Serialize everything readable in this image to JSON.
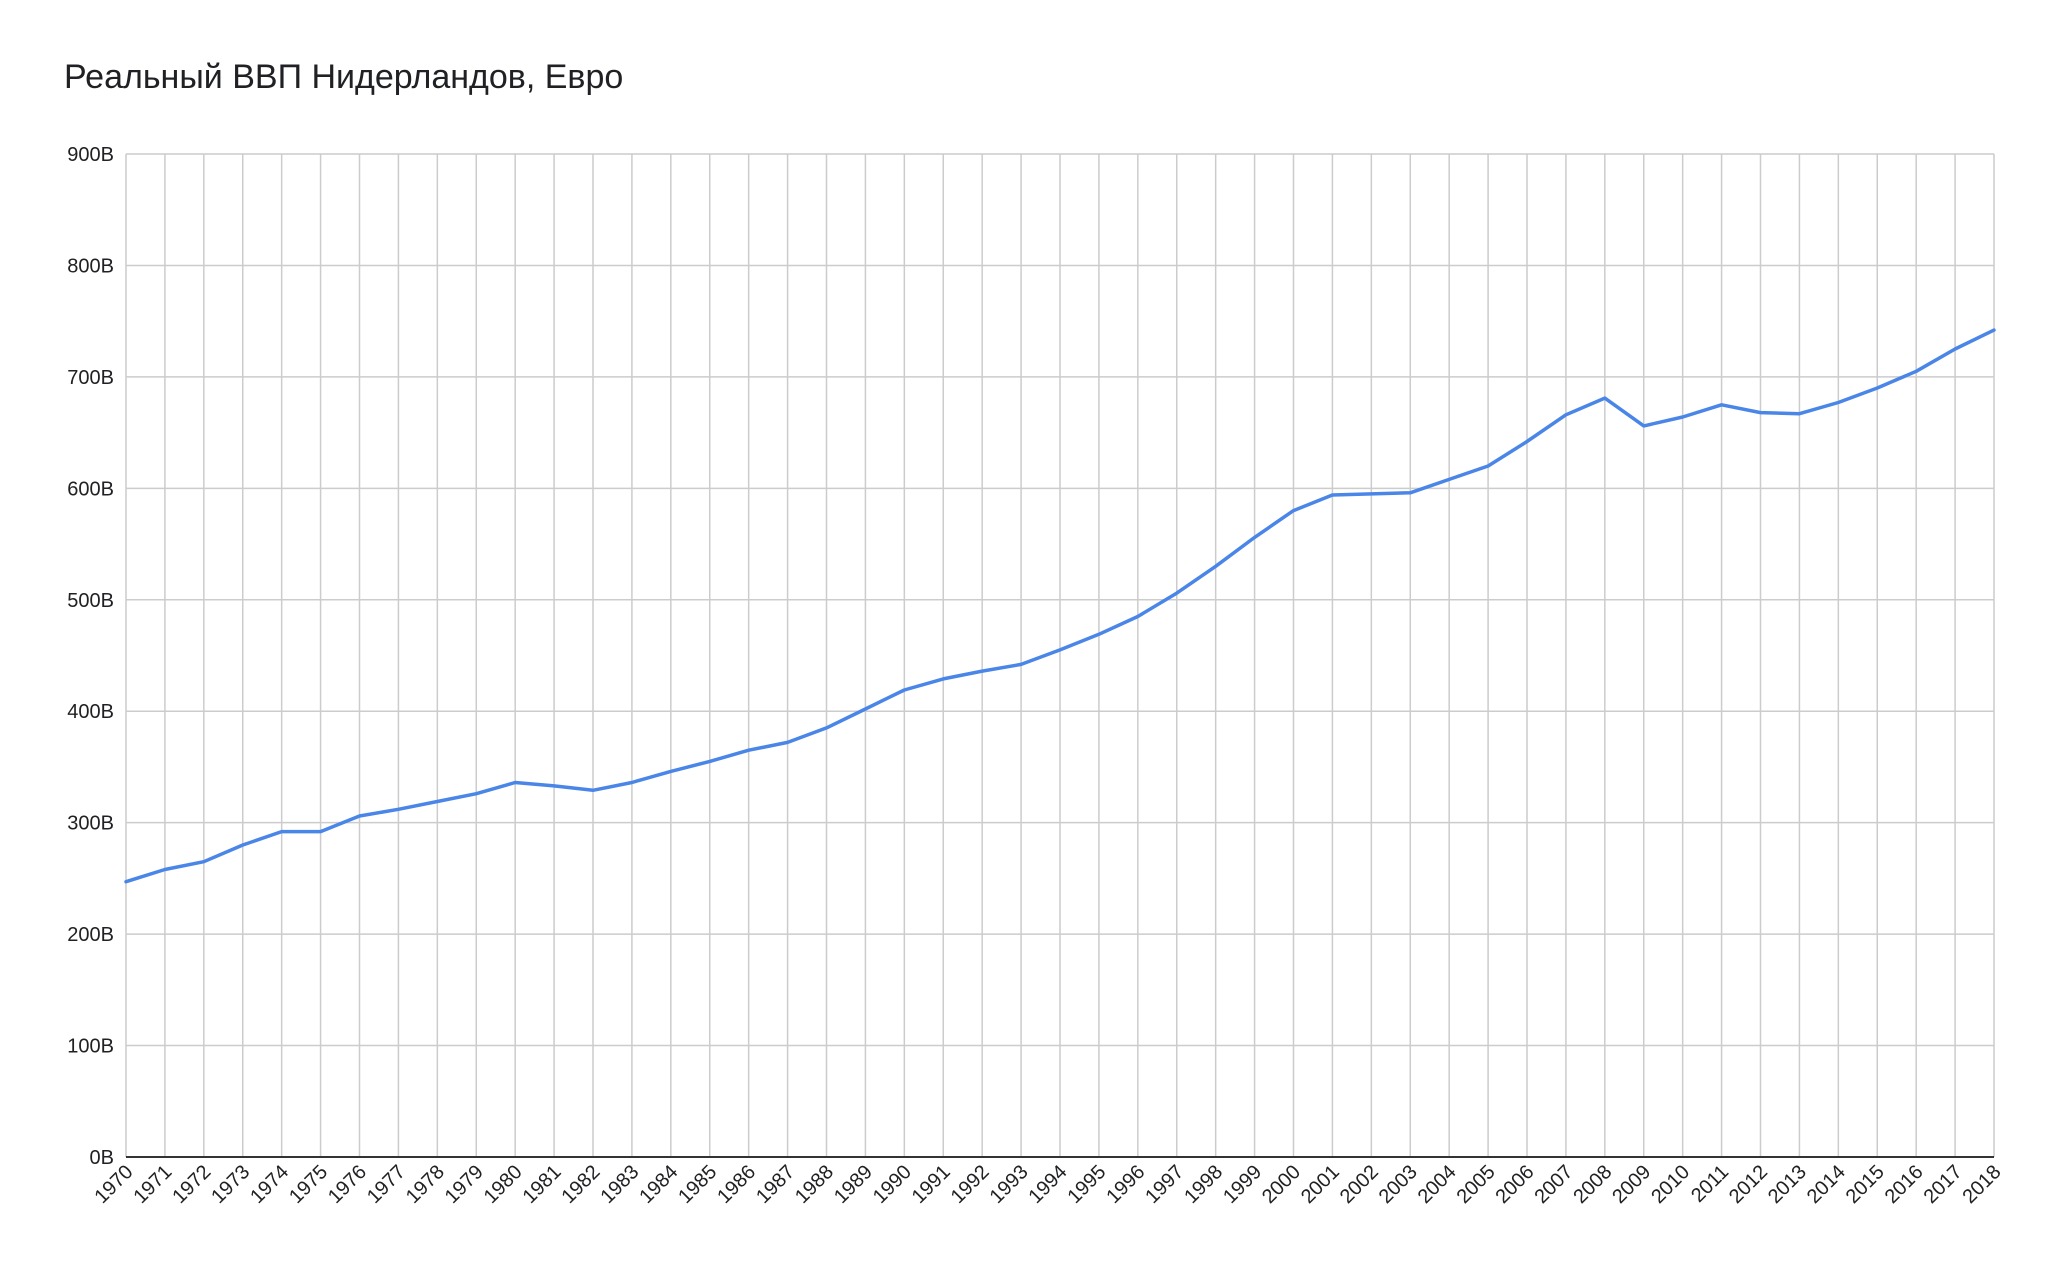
{
  "chart_data": {
    "type": "line",
    "title": "Реальный ВВП Нидерландов, Евро",
    "xlabel": "",
    "ylabel": "",
    "ylim": [
      0,
      900
    ],
    "y_ticks": [
      0,
      100,
      200,
      300,
      400,
      500,
      600,
      700,
      800,
      900
    ],
    "y_tick_labels": [
      "0B",
      "100B",
      "200B",
      "300B",
      "400B",
      "500B",
      "600B",
      "700B",
      "800B",
      "900B"
    ],
    "grid": true,
    "line_color": "#4a86e8",
    "grid_color": "#cccccc",
    "axis_color": "#333333",
    "x": [
      "1970",
      "1971",
      "1972",
      "1973",
      "1974",
      "1975",
      "1976",
      "1977",
      "1978",
      "1979",
      "1980",
      "1981",
      "1982",
      "1983",
      "1984",
      "1985",
      "1986",
      "1987",
      "1988",
      "1989",
      "1990",
      "1991",
      "1992",
      "1993",
      "1994",
      "1995",
      "1996",
      "1997",
      "1998",
      "1999",
      "2000",
      "2001",
      "2002",
      "2003",
      "2004",
      "2005",
      "2006",
      "2007",
      "2008",
      "2009",
      "2010",
      "2011",
      "2012",
      "2013",
      "2014",
      "2015",
      "2016",
      "2017",
      "2018"
    ],
    "series": [
      {
        "values": [
          247,
          258,
          265,
          280,
          292,
          292,
          306,
          312,
          319,
          326,
          336,
          333,
          329,
          336,
          346,
          355,
          365,
          372,
          385,
          402,
          419,
          429,
          436,
          442,
          455,
          469,
          485,
          506,
          530,
          556,
          580,
          594,
          595,
          596,
          608,
          620,
          642,
          666,
          681,
          656,
          664,
          675,
          668,
          667,
          677,
          690,
          705,
          725,
          742
        ]
      }
    ]
  }
}
